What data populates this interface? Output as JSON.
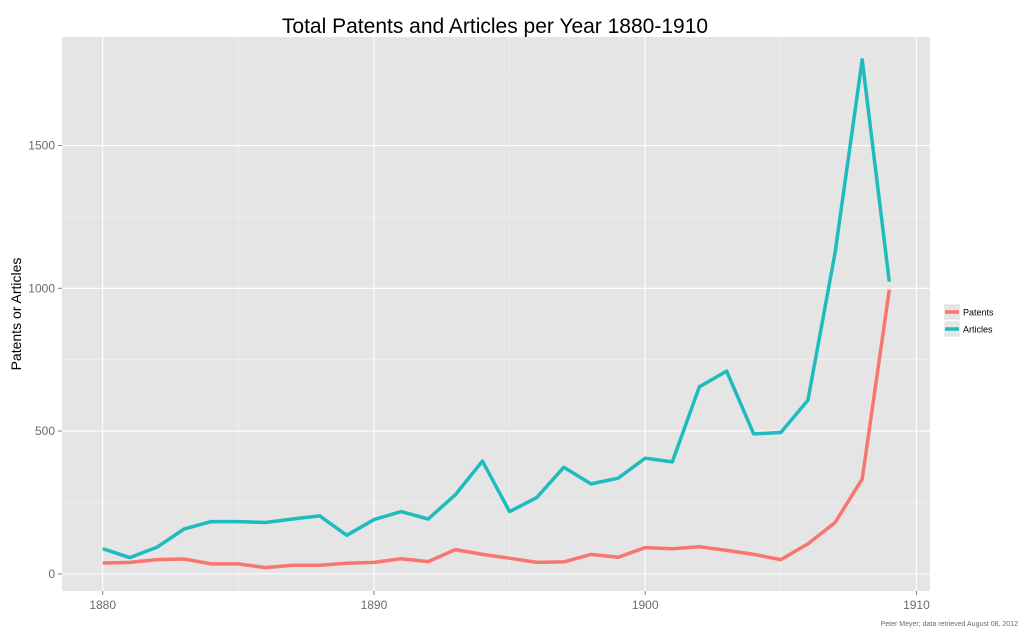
{
  "chart_data": {
    "type": "line",
    "title": "Total Patents and Articles per Year 1880-1910",
    "xlabel": "",
    "ylabel": "Patents or Articles",
    "caption": "Peter Meyer; data retrieved August 08, 2012",
    "xlim": [
      1878.5,
      1910.5
    ],
    "ylim": [
      -60,
      1880
    ],
    "x_ticks": [
      "1880",
      "1890",
      "1900",
      "1910"
    ],
    "y_ticks": [
      "0",
      "500",
      "1000",
      "1500"
    ],
    "grid": true,
    "legend_position": "right",
    "x": [
      1880,
      1881,
      1882,
      1883,
      1884,
      1885,
      1886,
      1887,
      1888,
      1889,
      1890,
      1891,
      1892,
      1893,
      1894,
      1895,
      1896,
      1897,
      1898,
      1899,
      1900,
      1901,
      1902,
      1903,
      1904,
      1905,
      1906,
      1907,
      1908,
      1909
    ],
    "series": [
      {
        "name": "Patents",
        "color": "#F8766D",
        "values": [
          38,
          40,
          50,
          52,
          35,
          35,
          22,
          30,
          30,
          37,
          40,
          53,
          43,
          85,
          68,
          55,
          40,
          42,
          68,
          58,
          92,
          88,
          95,
          82,
          68,
          50,
          105,
          180,
          332,
          995
        ]
      },
      {
        "name": "Articles",
        "color": "#1EBBBF",
        "values": [
          88,
          57,
          93,
          157,
          183,
          183,
          180,
          192,
          203,
          135,
          190,
          218,
          192,
          277,
          395,
          218,
          267,
          373,
          315,
          335,
          405,
          392,
          655,
          710,
          490,
          495,
          608,
          1125,
          1800,
          1023
        ]
      }
    ],
    "colors": {
      "panel_bg": "#E5E5E5",
      "grid_major": "#FFFFFF",
      "grid_minor": "#F2F2F2",
      "legend_key_bg": "#E5E5E5"
    }
  }
}
